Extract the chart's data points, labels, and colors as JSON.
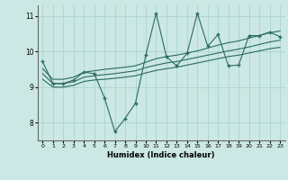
{
  "bg_color": "#cce8e4",
  "grid_color": "#aad4cf",
  "line_color": "#2a6b62",
  "xlabel": "Humidex (Indice chaleur)",
  "xlim": [
    -0.5,
    23.5
  ],
  "ylim": [
    7.5,
    11.3
  ],
  "yticks": [
    8,
    9,
    10,
    11
  ],
  "xticks": [
    0,
    1,
    2,
    3,
    4,
    5,
    6,
    7,
    8,
    9,
    10,
    11,
    12,
    13,
    14,
    15,
    16,
    17,
    18,
    19,
    20,
    21,
    22,
    23
  ],
  "series_zigzag": {
    "x": [
      0,
      1,
      2,
      3,
      4,
      5,
      6,
      7,
      8,
      9,
      10,
      11,
      12,
      13,
      14,
      15,
      16,
      17,
      18,
      19,
      20,
      21,
      22,
      23
    ],
    "y": [
      9.72,
      9.1,
      9.1,
      9.2,
      9.42,
      9.38,
      8.7,
      7.75,
      8.12,
      8.55,
      9.9,
      11.08,
      9.85,
      9.6,
      9.95,
      11.08,
      10.15,
      10.48,
      9.6,
      9.62,
      10.45,
      10.45,
      10.55,
      10.42
    ]
  },
  "series_upper": {
    "x": [
      0,
      1,
      2,
      3,
      4,
      5,
      6,
      7,
      8,
      9,
      10,
      11,
      12,
      13,
      14,
      15,
      16,
      17,
      18,
      19,
      20,
      21,
      22,
      23
    ],
    "y": [
      9.52,
      9.22,
      9.22,
      9.28,
      9.42,
      9.46,
      9.5,
      9.53,
      9.56,
      9.6,
      9.7,
      9.8,
      9.86,
      9.9,
      9.96,
      10.02,
      10.1,
      10.18,
      10.25,
      10.3,
      10.38,
      10.45,
      10.53,
      10.58
    ]
  },
  "series_mid": {
    "x": [
      0,
      1,
      2,
      3,
      4,
      5,
      6,
      7,
      8,
      9,
      10,
      11,
      12,
      13,
      14,
      15,
      16,
      17,
      18,
      19,
      20,
      21,
      22,
      23
    ],
    "y": [
      9.38,
      9.1,
      9.1,
      9.15,
      9.28,
      9.32,
      9.35,
      9.38,
      9.42,
      9.46,
      9.55,
      9.62,
      9.68,
      9.72,
      9.78,
      9.84,
      9.9,
      9.96,
      10.02,
      10.07,
      10.13,
      10.2,
      10.27,
      10.32
    ]
  },
  "series_lower": {
    "x": [
      0,
      1,
      2,
      3,
      4,
      5,
      6,
      7,
      8,
      9,
      10,
      11,
      12,
      13,
      14,
      15,
      16,
      17,
      18,
      19,
      20,
      21,
      22,
      23
    ],
    "y": [
      9.22,
      9.0,
      9.0,
      9.05,
      9.16,
      9.2,
      9.22,
      9.25,
      9.28,
      9.32,
      9.4,
      9.47,
      9.52,
      9.56,
      9.62,
      9.68,
      9.74,
      9.8,
      9.86,
      9.9,
      9.96,
      10.02,
      10.08,
      10.12
    ]
  }
}
